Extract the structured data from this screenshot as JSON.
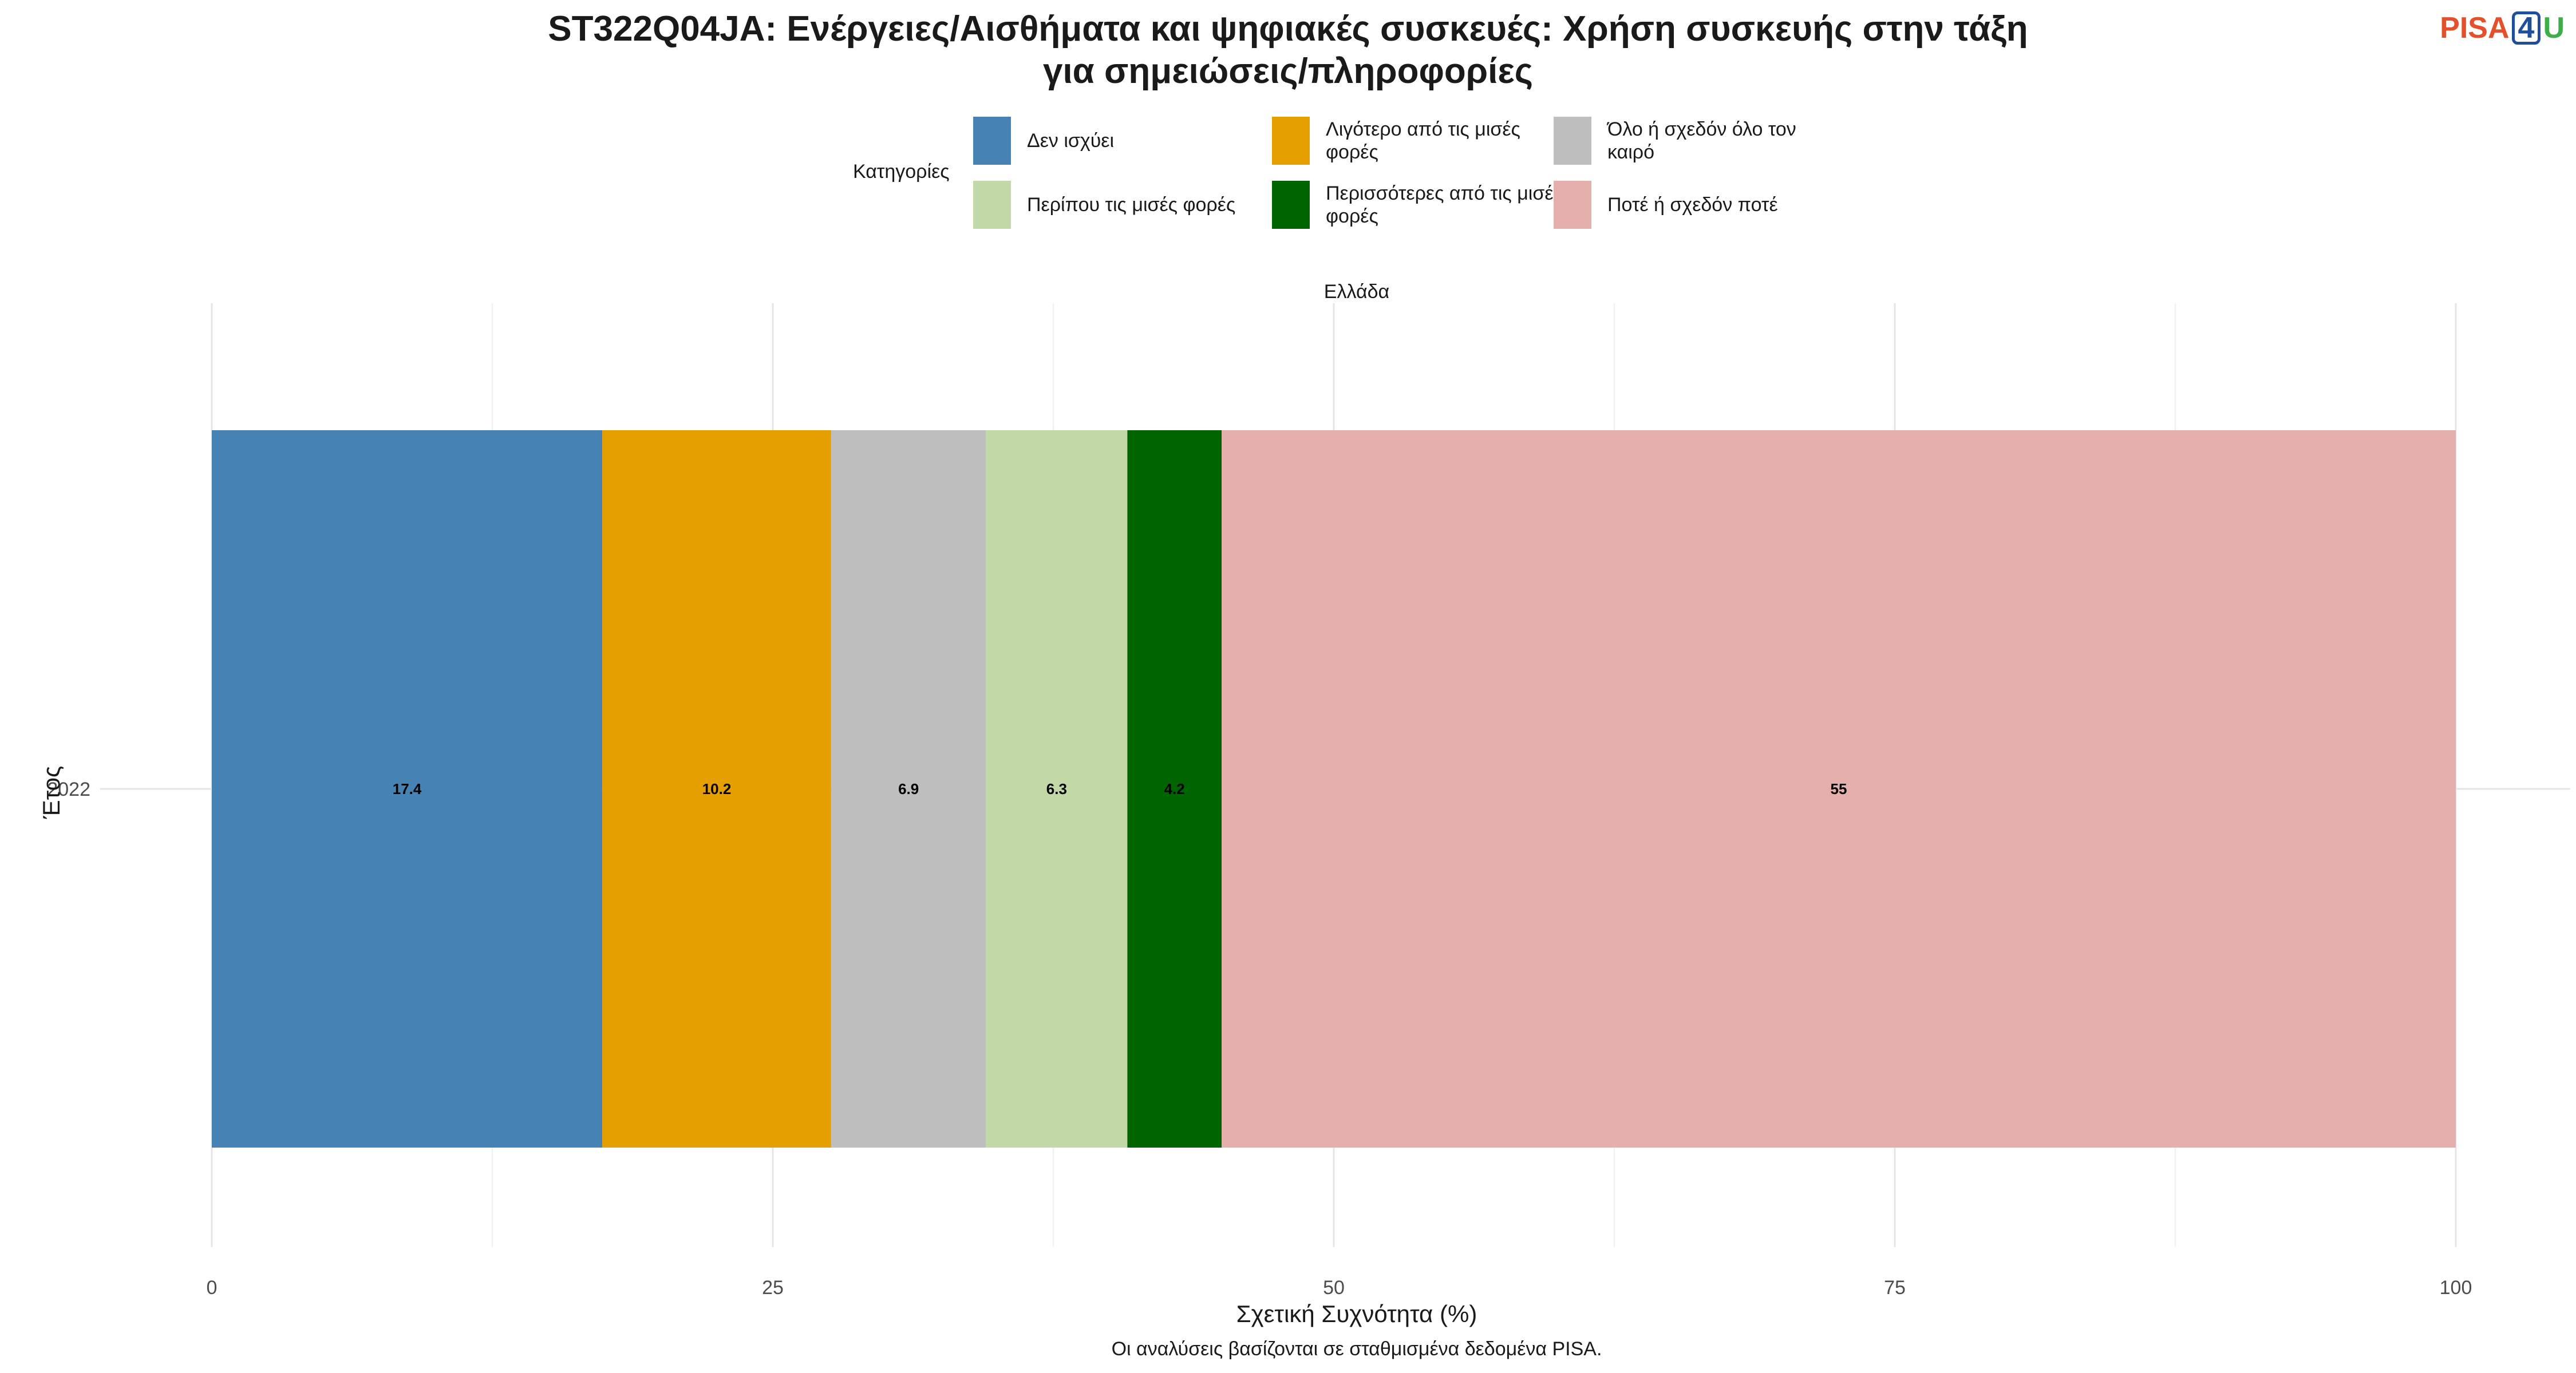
{
  "title_line1": "ST322Q04JA: Ενέργειες/Αισθήματα και ψηφιακές συσκευές: Χρήση συσκευής στην τάξη",
  "title_line2": "για σημειώσεις/πληροφορίες",
  "logo": {
    "pisa": "PISA",
    "four": "4",
    "u": "U"
  },
  "legend": {
    "title": "Κατηγορίες",
    "items": [
      {
        "label": "Δεν ισχύει",
        "color": "#4682B4"
      },
      {
        "label": "Λιγότερο από τις μισές φορές",
        "color": "#E69F00"
      },
      {
        "label": "Όλο ή σχεδόν όλο τον καιρό",
        "color": "#BEBEBE"
      },
      {
        "label": "Περίπου τις μισές φορές",
        "color": "#C3D8A7"
      },
      {
        "label": "Περισσότερες από τις μισές φορές",
        "color": "#006400"
      },
      {
        "label": "Ποτέ ή σχεδόν ποτέ",
        "color": "#E5B0AB"
      }
    ]
  },
  "facet_label": "Ελλάδα",
  "xlabel": "Σχετική Συχνότητα (%)",
  "ylabel": "Έτος",
  "caption": "Οι αναλύσεις βασίζονται σε σταθμισμένα δεδομένα PISA.",
  "chart_data": {
    "type": "bar",
    "orientation": "horizontal",
    "stacked": true,
    "categories": [
      "2022"
    ],
    "xlim": [
      0,
      100
    ],
    "xticks": [
      0,
      25,
      50,
      75,
      100
    ],
    "grid": true,
    "legend_position": "top",
    "series": [
      {
        "name": "Δεν ισχύει",
        "values": [
          17.4
        ],
        "label": "17.4",
        "color": "#4682B4"
      },
      {
        "name": "Λιγότερο από τις μισές φορές",
        "values": [
          10.2
        ],
        "label": "10.2",
        "color": "#E69F00"
      },
      {
        "name": "Όλο ή σχεδόν όλο τον καιρό",
        "values": [
          6.9
        ],
        "label": "6.9",
        "color": "#BEBEBE"
      },
      {
        "name": "Περίπου τις μισές φορές",
        "values": [
          6.3
        ],
        "label": "6.3",
        "color": "#C3D8A7"
      },
      {
        "name": "Περισσότερες από τις μισές φορές",
        "values": [
          4.2
        ],
        "label": "4.2",
        "color": "#006400"
      },
      {
        "name": "Ποτέ ή σχεδόν ποτέ",
        "values": [
          55
        ],
        "label": "55",
        "color": "#E5B0AB"
      }
    ]
  }
}
